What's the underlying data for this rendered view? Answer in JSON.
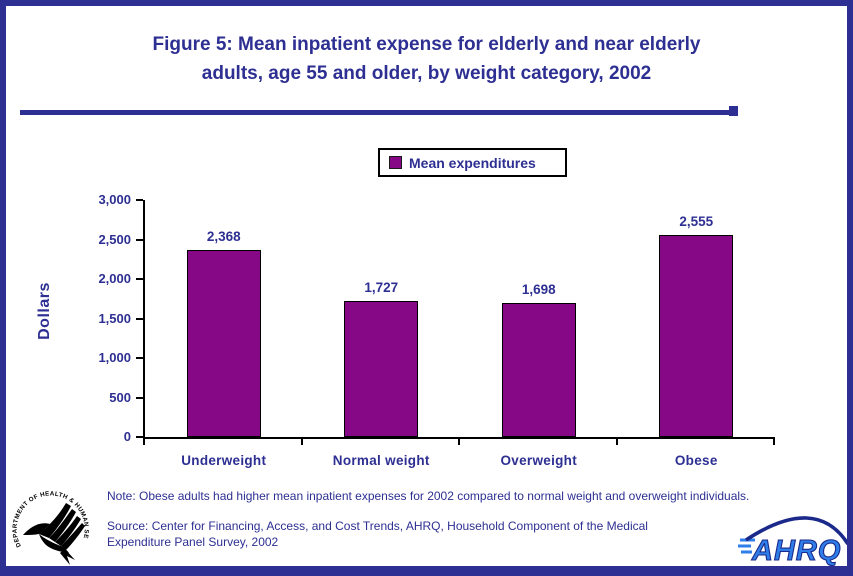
{
  "page": {
    "title_lines": [
      "Figure 5: Mean inpatient expense for elderly and near elderly",
      "adults, age 55 and older, by weight category, 2002"
    ],
    "note": "Note: Obese adults had higher mean inpatient expenses for 2002 compared to normal weight and overweight individuals.",
    "source_lines": [
      "Source: Center for Financing, Access, and Cost Trends, AHRQ, Household Component of the Medical",
      "Expenditure Panel Survey, 2002"
    ]
  },
  "legend": {
    "label": "Mean expenditures"
  },
  "colors": {
    "navy": "#2D2F92",
    "bar_purple": "#870887",
    "axis_black": "#000000",
    "ahrq_letter_blue": "#2E7DE8"
  },
  "chart_data": {
    "type": "bar",
    "title": "Figure 5: Mean inpatient expense for elderly and near elderly adults, age 55 and older, by weight category, 2002",
    "categories": [
      "Underweight",
      "Normal weight",
      "Overweight",
      "Obese"
    ],
    "values": [
      2368,
      1727,
      1698,
      2555
    ],
    "value_labels": [
      "2,368",
      "1,727",
      "1,698",
      "2,555"
    ],
    "xlabel": "",
    "ylabel": "Dollars",
    "ylim": [
      0,
      3000
    ],
    "ytick_step": 500,
    "ytick_labels": [
      "0",
      "500",
      "1,000",
      "1,500",
      "2,000",
      "2,500",
      "3,000"
    ],
    "legend_entries": [
      "Mean expenditures"
    ],
    "legend_position": "top-center",
    "grid": false
  },
  "logos": {
    "hhs_circular_text": "DEPARTMENT OF HEALTH & HUMAN SERVICES·USA",
    "ahrq_wordmark": "AHRQ"
  }
}
